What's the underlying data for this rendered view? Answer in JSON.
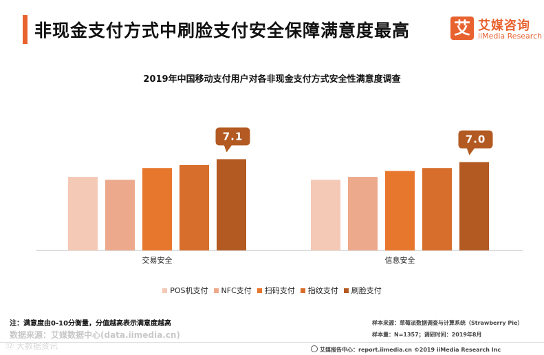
{
  "header": {
    "title": "非现金支付方式中刷脸支付安全保障满意度最高",
    "logo_mark": "艾",
    "logo_cn": "艾媒咨询",
    "logo_en": "iiMedia Research"
  },
  "chart_data": {
    "type": "bar",
    "title": "2019年中国移动支付用户对各非现金支付方式安全性满意度调查",
    "categories": [
      "交易安全",
      "信息安全"
    ],
    "series": [
      {
        "name": "POS机支付",
        "color": "#f4c9b6",
        "values": [
          6.5,
          6.4
        ]
      },
      {
        "name": "NFC支付",
        "color": "#eda98c",
        "values": [
          6.4,
          6.5
        ]
      },
      {
        "name": "扫码支付",
        "color": "#e8772e",
        "values": [
          6.8,
          6.7
        ]
      },
      {
        "name": "指纹支付",
        "color": "#d76e2c",
        "values": [
          6.9,
          6.8
        ]
      },
      {
        "name": "刷脸支付",
        "color": "#b25a22",
        "values": [
          7.1,
          7.0
        ]
      }
    ],
    "callouts": [
      "7.1",
      "7.0"
    ],
    "ylim": [
      4,
      7.6
    ],
    "grid": false,
    "legend_position": "bottom"
  },
  "footer": {
    "note": "注：满意度由0-10分衡量，分值越高表示满意度越高",
    "data_source": "数据来源：艾媒数据中心(data.iimedia.cn)",
    "watermark": "⑫ 大数据资讯",
    "sample_source": "样本来源：草莓派数据调查与计算系统（Strawberry Pie）",
    "sample_size": "样本量：N=1357；调研时间：2019年8月",
    "bottom_bar": "艾媒报告中心：report.iimedia.cn   ©2019   iiMedia Research  Inc"
  }
}
